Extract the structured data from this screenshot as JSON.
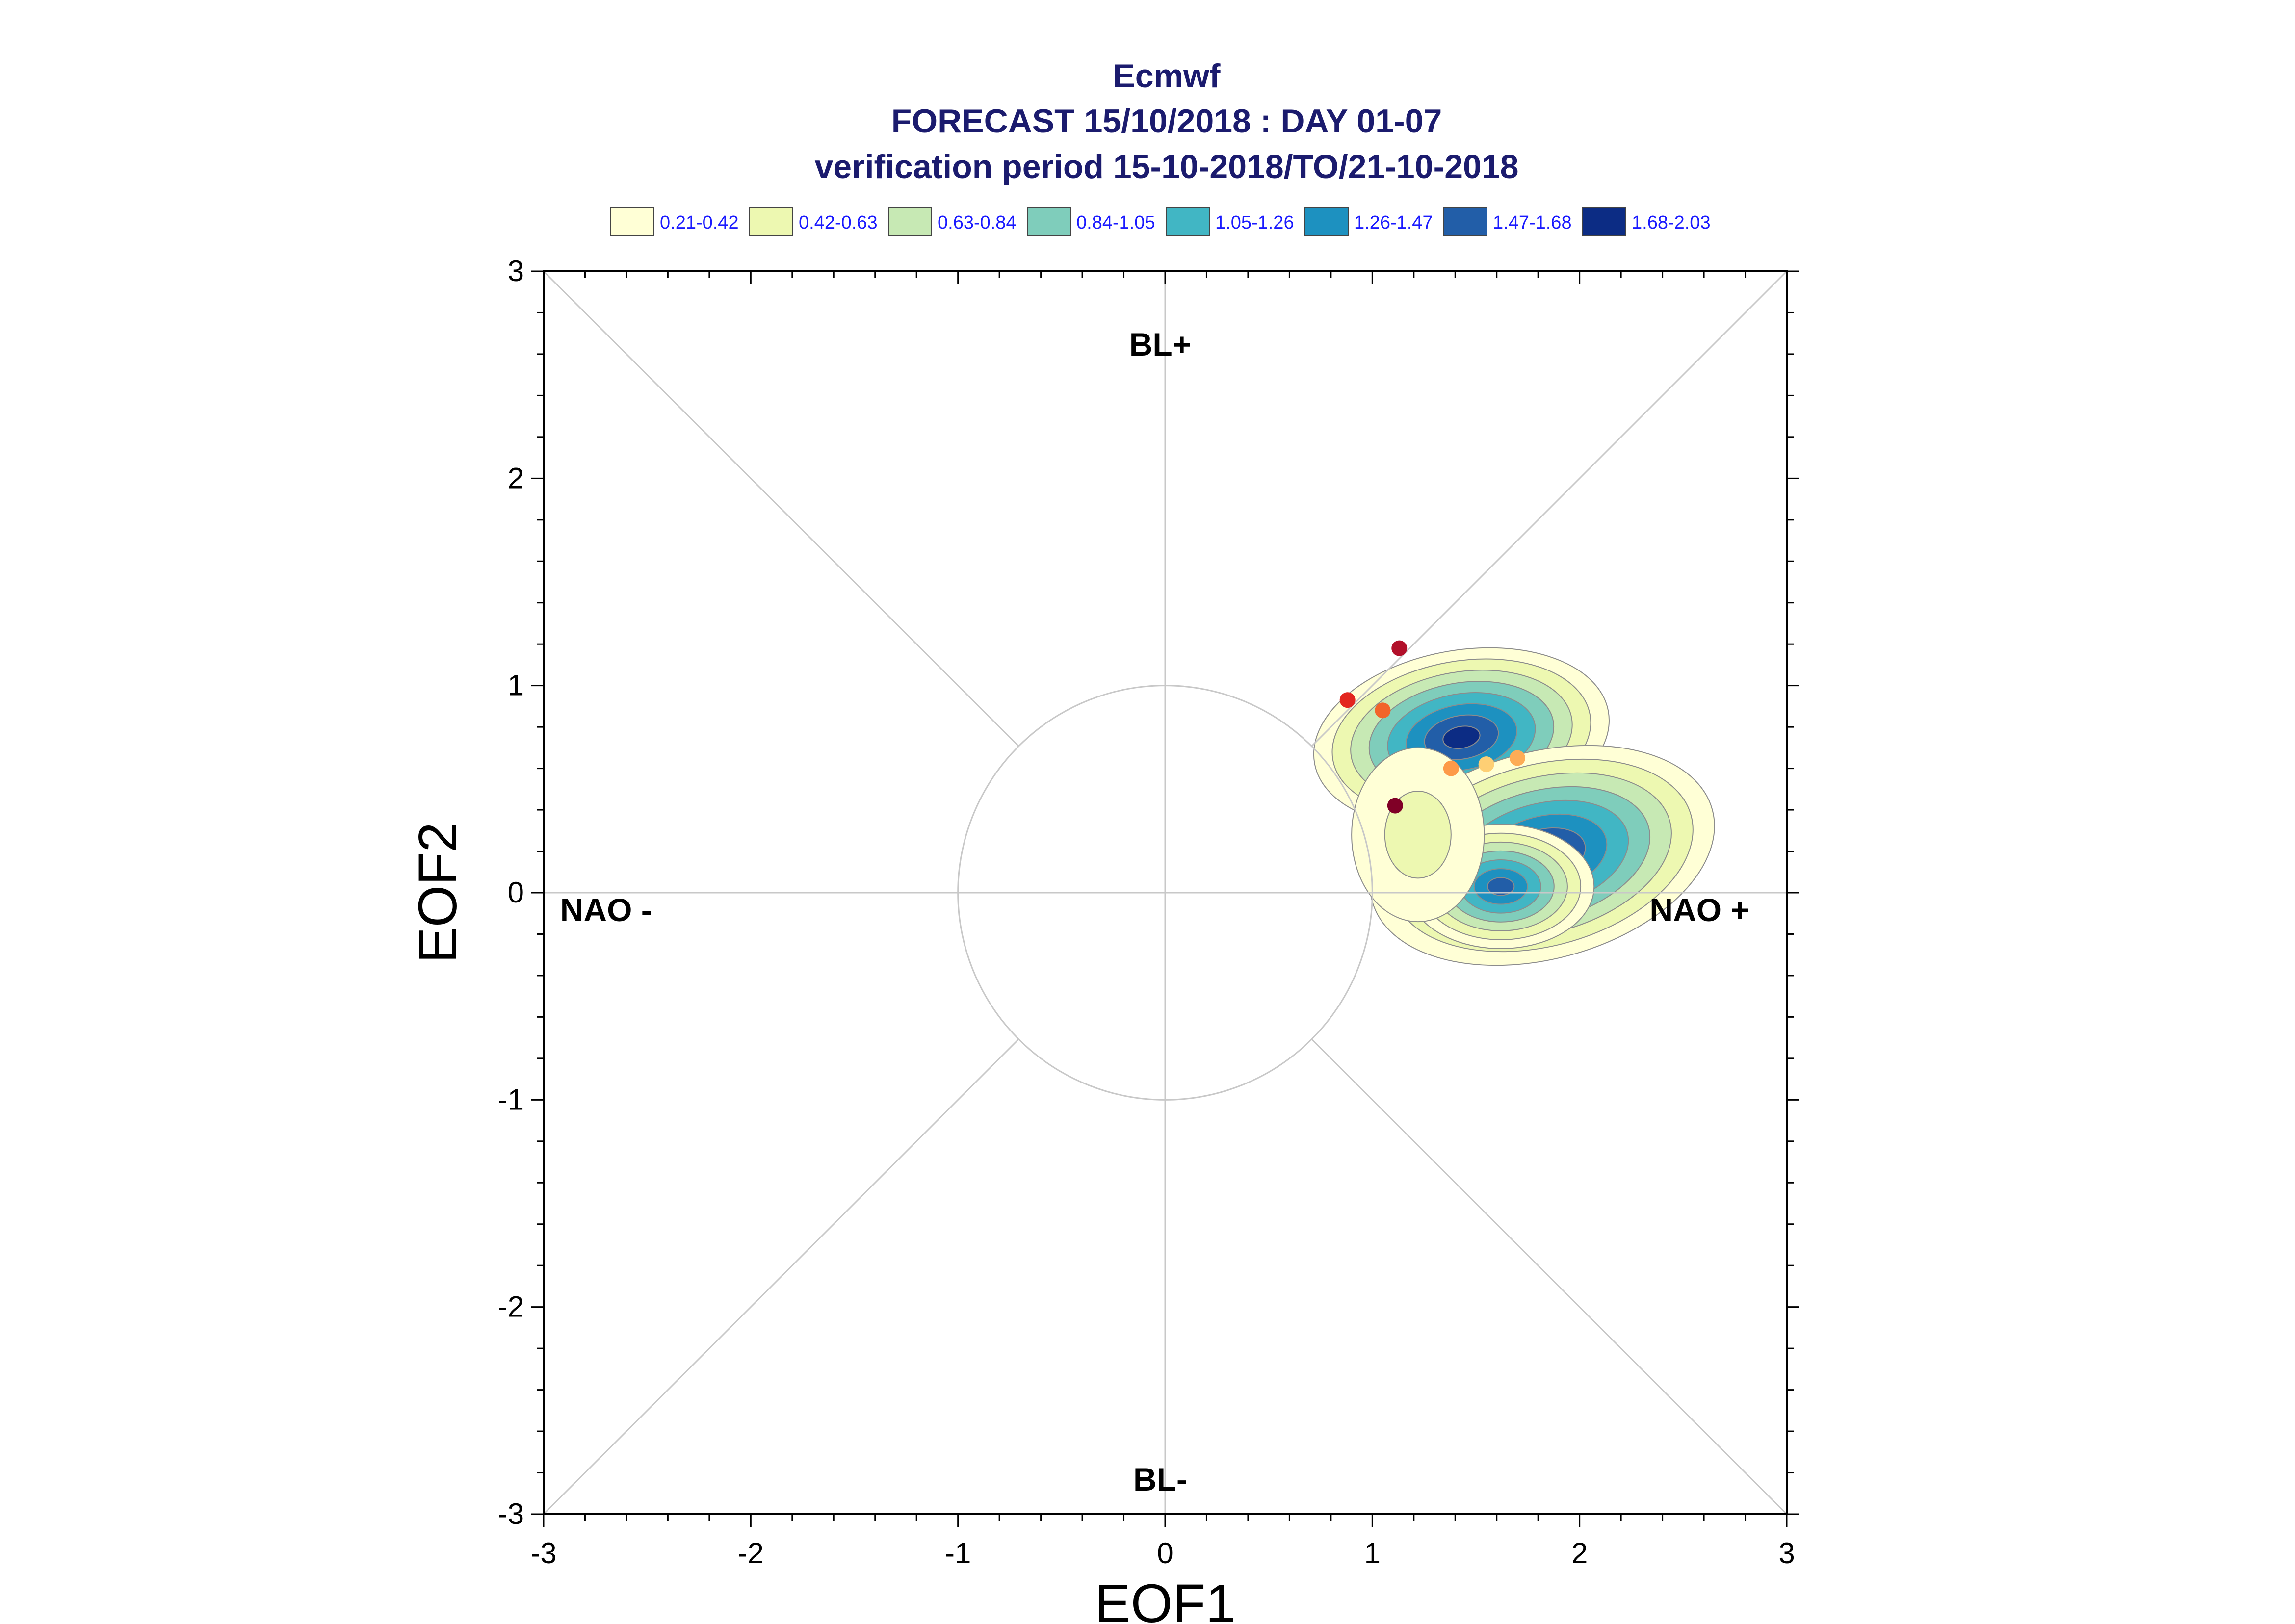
{
  "chart_data": {
    "type": "scatter",
    "title": [
      "Ecmwf",
      "FORECAST 15/10/2018 : DAY 01-07",
      "verification period 15-10-2018/TO/21-10-2018"
    ],
    "xlabel": "EOF1",
    "ylabel": "EOF2",
    "xlim": [
      -3,
      3
    ],
    "ylim": [
      -3,
      3
    ],
    "x_ticks": [
      -3,
      -2,
      -1,
      0,
      1,
      2,
      3
    ],
    "y_ticks": [
      -3,
      -2,
      -1,
      0,
      1,
      2,
      3
    ],
    "x_tick_labels": [
      "-3",
      "-2",
      "-1",
      "0",
      "1",
      "2",
      "3"
    ],
    "y_tick_labels": [
      "-3",
      "-2",
      "-1",
      "0",
      "1",
      "2",
      "3"
    ],
    "unit_circle_radius": 1,
    "diagonals": true,
    "grid": false,
    "region_labels": {
      "top": "BL+",
      "bottom": "BL-",
      "left": "NAO -",
      "right": "NAO +"
    },
    "legend": {
      "placement": "top",
      "entries": [
        {
          "label": "0.21-0.42",
          "color": "#ffffd6"
        },
        {
          "label": "0.42-0.63",
          "color": "#edf8b1"
        },
        {
          "label": "0.63-0.84",
          "color": "#c7e9b4"
        },
        {
          "label": "0.84-1.05",
          "color": "#7fcdbb"
        },
        {
          "label": "1.05-1.26",
          "color": "#41b6c4"
        },
        {
          "label": "1.26-1.47",
          "color": "#1d91c0"
        },
        {
          "label": "1.47-1.68",
          "color": "#225ea8"
        },
        {
          "label": "1.68-2.03",
          "color": "#0c2c84"
        }
      ]
    },
    "density_clusters": [
      {
        "cx": 1.43,
        "cy": 0.75,
        "rx": 0.72,
        "ry": 0.42,
        "rotate": -10,
        "max_level": 8
      },
      {
        "cx": 1.82,
        "cy": 0.18,
        "rx": 0.85,
        "ry": 0.5,
        "rotate": -15,
        "max_level": 8
      },
      {
        "cx": 1.62,
        "cy": 0.03,
        "rx": 0.45,
        "ry": 0.3,
        "rotate": 0,
        "max_level": 7
      },
      {
        "cx": 1.22,
        "cy": 0.28,
        "rx": 0.32,
        "ry": 0.42,
        "rotate": 0,
        "max_level": 2
      }
    ],
    "points": [
      {
        "x": 1.13,
        "y": 1.18,
        "color": "#b2102a"
      },
      {
        "x": 0.88,
        "y": 0.93,
        "color": "#e3261f"
      },
      {
        "x": 1.05,
        "y": 0.88,
        "color": "#f2642a"
      },
      {
        "x": 1.38,
        "y": 0.6,
        "color": "#fd9a49"
      },
      {
        "x": 1.55,
        "y": 0.62,
        "color": "#fecf74"
      },
      {
        "x": 1.7,
        "y": 0.65,
        "color": "#fdac56"
      },
      {
        "x": 1.11,
        "y": 0.42,
        "color": "#800026"
      }
    ]
  }
}
